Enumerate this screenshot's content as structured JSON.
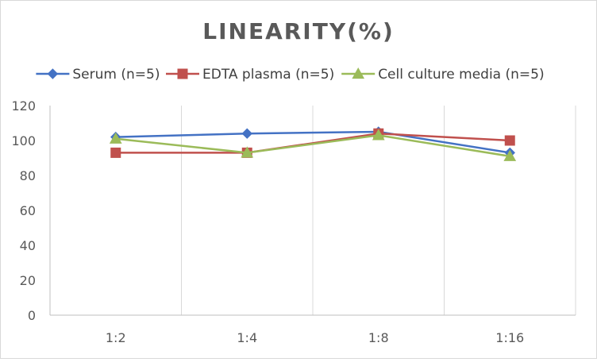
{
  "chart_data": {
    "type": "line",
    "title": "LINEARITY(%)",
    "xlabel": "",
    "ylabel": "",
    "categories": [
      "1:2",
      "1:4",
      "1:8",
      "1:16"
    ],
    "ylim": [
      0,
      120
    ],
    "yticks": [
      0,
      20,
      40,
      60,
      80,
      100,
      120
    ],
    "grid": "vertical",
    "legend_position": "top",
    "series": [
      {
        "name": "Serum (n=5)",
        "values": [
          102,
          104,
          105,
          93
        ],
        "color": "#4472C4",
        "marker": "diamond"
      },
      {
        "name": "EDTA plasma (n=5)",
        "values": [
          93,
          93,
          104,
          100
        ],
        "color": "#C0504D",
        "marker": "square"
      },
      {
        "name": "Cell culture media (n=5)",
        "values": [
          101,
          93,
          103,
          91
        ],
        "color": "#9BBB59",
        "marker": "triangle"
      }
    ]
  }
}
